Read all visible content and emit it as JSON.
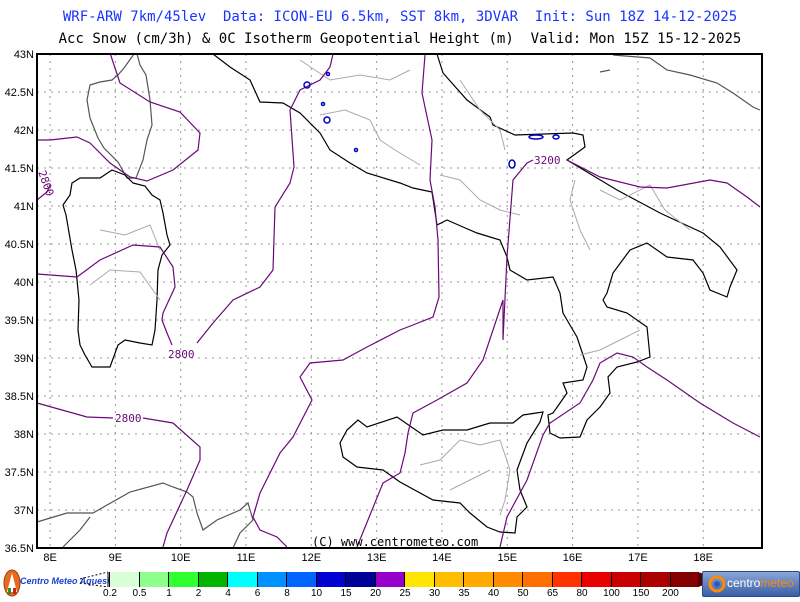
{
  "header": {
    "line1": "WRF-ARW 7km/45lev  Data: ICON-EU 6.5km, SST 8km, 3DVAR  Init: Sun 18Z 14-12-2025",
    "line2": "Acc Snow (cm/3h) & 0C Isotherm Geopotential Height (m)  Valid: Mon 15Z 15-12-2025"
  },
  "map": {
    "lat_labels": [
      "43N",
      "42.5N",
      "42N",
      "41.5N",
      "41N",
      "40.5N",
      "40N",
      "39.5N",
      "39N",
      "38.5N",
      "38N",
      "37.5N",
      "37N",
      "36.5N"
    ],
    "lon_labels": [
      "8E",
      "9E",
      "10E",
      "11E",
      "12E",
      "13E",
      "14E",
      "15E",
      "16E",
      "17E",
      "18E"
    ],
    "lat_range": [
      36.5,
      43
    ],
    "lon_range": [
      7.8,
      18.9
    ],
    "grid": "dotted",
    "isotherm_labels": {
      "a": "2800",
      "b": "2800",
      "c": "2800",
      "d": "3200"
    },
    "copyright": "(C) www.centrometeo.com",
    "colors": {
      "isotherm": "#6a0a78",
      "snow_contour": "#0000cc",
      "title_line1": "#1a33ff"
    }
  },
  "legend": {
    "labels": [
      "0.2",
      "0.5",
      "1",
      "2",
      "4",
      "6",
      "8",
      "10",
      "15",
      "20",
      "25",
      "30",
      "35",
      "40",
      "50",
      "65",
      "80",
      "100",
      "150",
      "200"
    ],
    "colors": [
      "#d8ffd8",
      "#8cff8c",
      "#30ff30",
      "#00b400",
      "#00ffff",
      "#0090ff",
      "#0064ff",
      "#0000d2",
      "#000096",
      "#9600c8",
      "#ffe600",
      "#ffbe00",
      "#ffaa00",
      "#ff8c00",
      "#ff6e00",
      "#ff3200",
      "#e60000",
      "#c80000",
      "#aa0000",
      "#820000"
    ],
    "overflow_color": "#5a0000"
  },
  "logos": {
    "left": "Centro Meteo Aquesio",
    "right_a": "centro",
    "right_b": "meteo"
  }
}
